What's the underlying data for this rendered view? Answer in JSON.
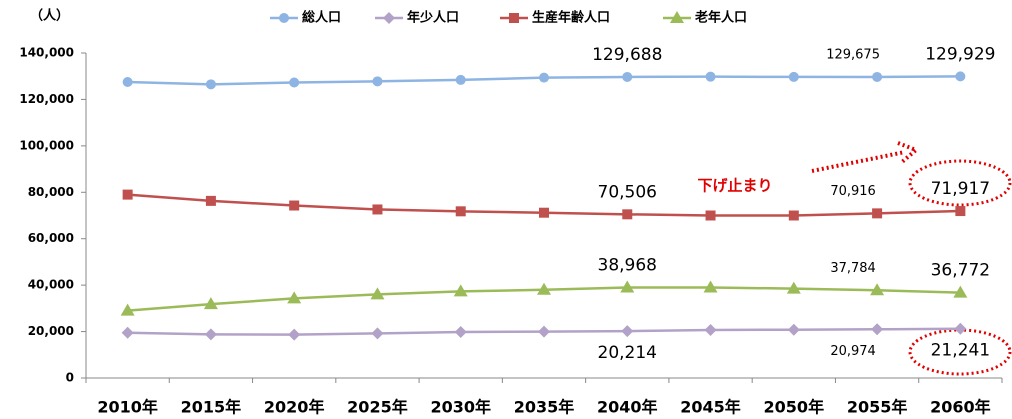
{
  "chart_data": {
    "type": "line",
    "y_unit_label": "（人）",
    "annotation": "下げ止まり",
    "categories": [
      "2010年",
      "2015年",
      "2020年",
      "2025年",
      "2030年",
      "2035年",
      "2040年",
      "2045年",
      "2050年",
      "2055年",
      "2060年"
    ],
    "ylim": [
      0,
      140000
    ],
    "yticks": [
      0,
      {
        "value": 20000,
        "label": "20,000"
      },
      {
        "value": 40000,
        "label": "40,000"
      },
      {
        "value": 60000,
        "label": "60,000"
      },
      {
        "value": 80000,
        "label": "80,000"
      },
      {
        "value": 100000,
        "label": "100,000"
      },
      {
        "value": 120000,
        "label": "120,000"
      },
      {
        "value": 140000,
        "label": "140,000"
      }
    ],
    "legend": "top",
    "series": [
      {
        "name": "総人口",
        "color": "#8eb4e3",
        "marker": "circle",
        "values": [
          127500,
          126500,
          127300,
          127800,
          128400,
          129400,
          129688,
          129800,
          129700,
          129675,
          129929
        ],
        "value_labels": [
          null,
          null,
          null,
          null,
          null,
          null,
          "129,688",
          null,
          null,
          "129,675",
          "129,929"
        ]
      },
      {
        "name": "年少人口",
        "color": "#b3a2c7",
        "marker": "diamond",
        "values": [
          19500,
          18800,
          18700,
          19200,
          19800,
          20000,
          20214,
          20700,
          20800,
          20974,
          21241
        ],
        "value_labels": [
          null,
          null,
          null,
          null,
          null,
          null,
          "20,214",
          null,
          null,
          "20,974",
          "21,241"
        ]
      },
      {
        "name": "生産年齢人口",
        "color": "#c0504d",
        "marker": "square",
        "values": [
          79000,
          76300,
          74300,
          72600,
          71800,
          71200,
          70506,
          70000,
          70000,
          70916,
          71917
        ],
        "value_labels": [
          null,
          null,
          null,
          null,
          null,
          null,
          "70,506",
          null,
          null,
          "70,916",
          "71,917"
        ]
      },
      {
        "name": "老年人口",
        "color": "#9bbb59",
        "marker": "triangle",
        "values": [
          29000,
          31800,
          34300,
          36000,
          37300,
          38000,
          38968,
          39000,
          38500,
          37784,
          36772
        ],
        "value_labels": [
          null,
          null,
          null,
          null,
          null,
          null,
          "38,968",
          null,
          null,
          "37,784",
          "36,772"
        ]
      }
    ]
  }
}
